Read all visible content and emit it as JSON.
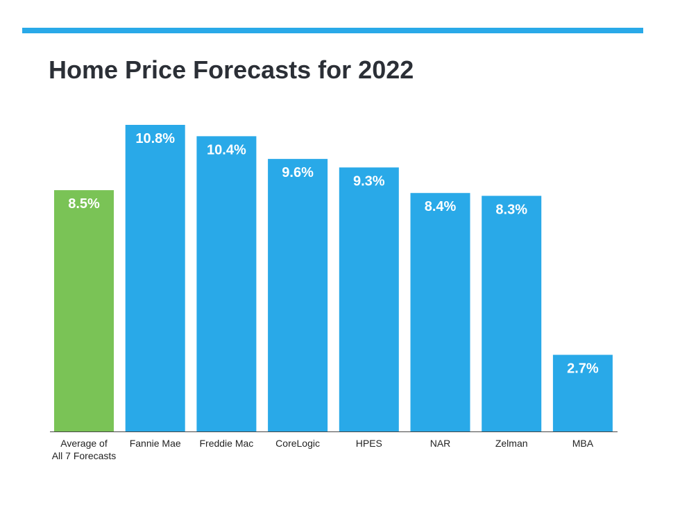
{
  "colors": {
    "accent_rule": "#29a9e8",
    "bar_primary": "#29a9e8",
    "bar_highlight": "#7ac356",
    "axis": "#444444"
  },
  "chart_data": {
    "type": "bar",
    "title": "Home Price Forecasts for 2022",
    "categories": [
      "Average of All 7 Forecasts",
      "Fannie Mae",
      "Freddie Mac",
      "CoreLogic",
      "HPES",
      "NAR",
      "Zelman",
      "MBA"
    ],
    "category_lines": [
      [
        "Average of",
        "All 7 Forecasts"
      ],
      [
        "Fannie Mae"
      ],
      [
        "Freddie Mac"
      ],
      [
        "CoreLogic"
      ],
      [
        "HPES"
      ],
      [
        "NAR"
      ],
      [
        "Zelman"
      ],
      [
        "MBA"
      ]
    ],
    "values": [
      8.5,
      10.8,
      10.4,
      9.6,
      9.3,
      8.4,
      8.3,
      2.7
    ],
    "value_labels": [
      "8.5%",
      "10.8%",
      "10.4%",
      "9.6%",
      "9.3%",
      "8.4%",
      "8.3%",
      "2.7%"
    ],
    "highlight_index": 0,
    "xlabel": "",
    "ylabel": "",
    "ylim": [
      0,
      10.8
    ],
    "grid": false,
    "legend": "none"
  }
}
